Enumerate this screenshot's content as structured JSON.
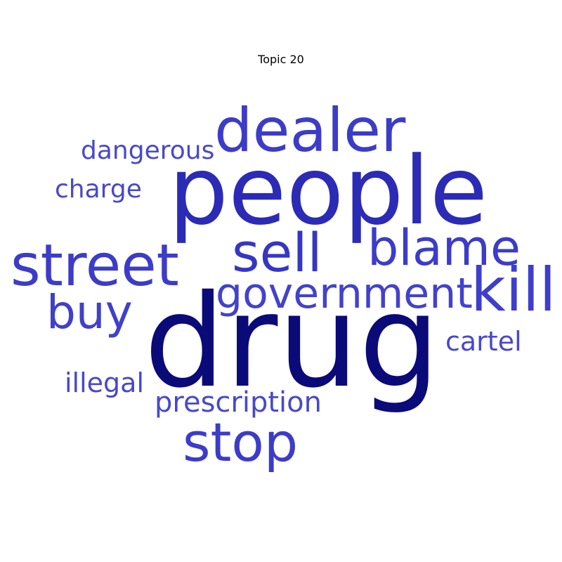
{
  "title": "Topic 20",
  "colors": {
    "background": "#ffffff",
    "dark": "#0a0a78",
    "mid": "#2a2ab4",
    "light": "#3e3ecc",
    "lighter": "#4848cc"
  },
  "words": [
    {
      "key": "drug",
      "text": "drug",
      "color": "#0a0a78"
    },
    {
      "key": "people",
      "text": "people",
      "color": "#2b2bb6"
    },
    {
      "key": "dealer",
      "text": "dealer",
      "color": "#3c3cc8"
    },
    {
      "key": "street",
      "text": "street",
      "color": "#3c3cc8"
    },
    {
      "key": "sell",
      "text": "sell",
      "color": "#3636c4"
    },
    {
      "key": "blame",
      "text": "blame",
      "color": "#3c3cc8"
    },
    {
      "key": "kill",
      "text": "kill",
      "color": "#3e3ecc"
    },
    {
      "key": "government",
      "text": "government",
      "color": "#4242cc"
    },
    {
      "key": "buy",
      "text": "buy",
      "color": "#4040cc"
    },
    {
      "key": "stop",
      "text": "stop",
      "color": "#3c3cc8"
    },
    {
      "key": "prescription",
      "text": "prescription",
      "color": "#4848cc"
    },
    {
      "key": "dangerous",
      "text": "dangerous",
      "color": "#4848cc"
    },
    {
      "key": "charge",
      "text": "charge",
      "color": "#4848cc"
    },
    {
      "key": "illegal",
      "text": "illegal",
      "color": "#4848cc"
    },
    {
      "key": "cartel",
      "text": "cartel",
      "color": "#4848cc"
    }
  ]
}
